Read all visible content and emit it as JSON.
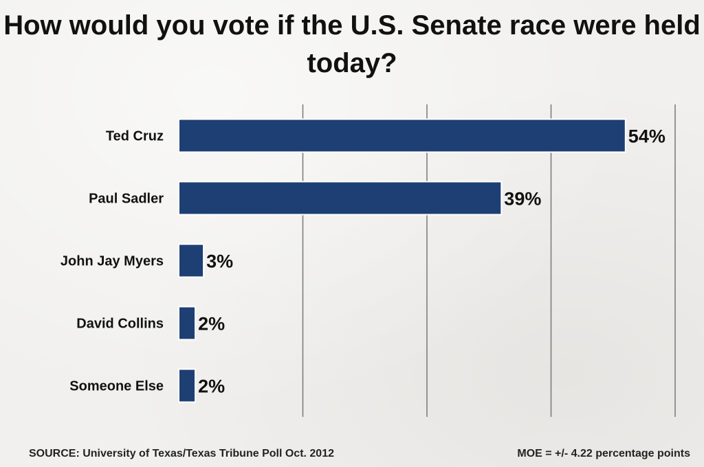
{
  "title": "How would you vote if the U.S. Senate race were held today?",
  "source": "SOURCE: University of Texas/Texas Tribune Poll Oct. 2012",
  "moe": "MOE = +/- 4.22 percentage points",
  "colors": {
    "bar": "#1e3f73",
    "bar_outline": "#ffffff",
    "grid": "#777777"
  },
  "chart_data": {
    "type": "bar",
    "orientation": "horizontal",
    "categories": [
      "Ted Cruz",
      "Paul Sadler",
      "John Jay Myers",
      "David Collins",
      "Someone Else"
    ],
    "values": [
      54,
      39,
      3,
      2,
      2
    ],
    "value_labels": [
      "54%",
      "39%",
      "3%",
      "2%",
      "2%"
    ],
    "unit": "%",
    "title": "How would you vote if the U.S. Senate race were held today?",
    "xlabel": "",
    "ylabel": "",
    "xlim": [
      0,
      60
    ],
    "grid": true,
    "legend": "none"
  }
}
